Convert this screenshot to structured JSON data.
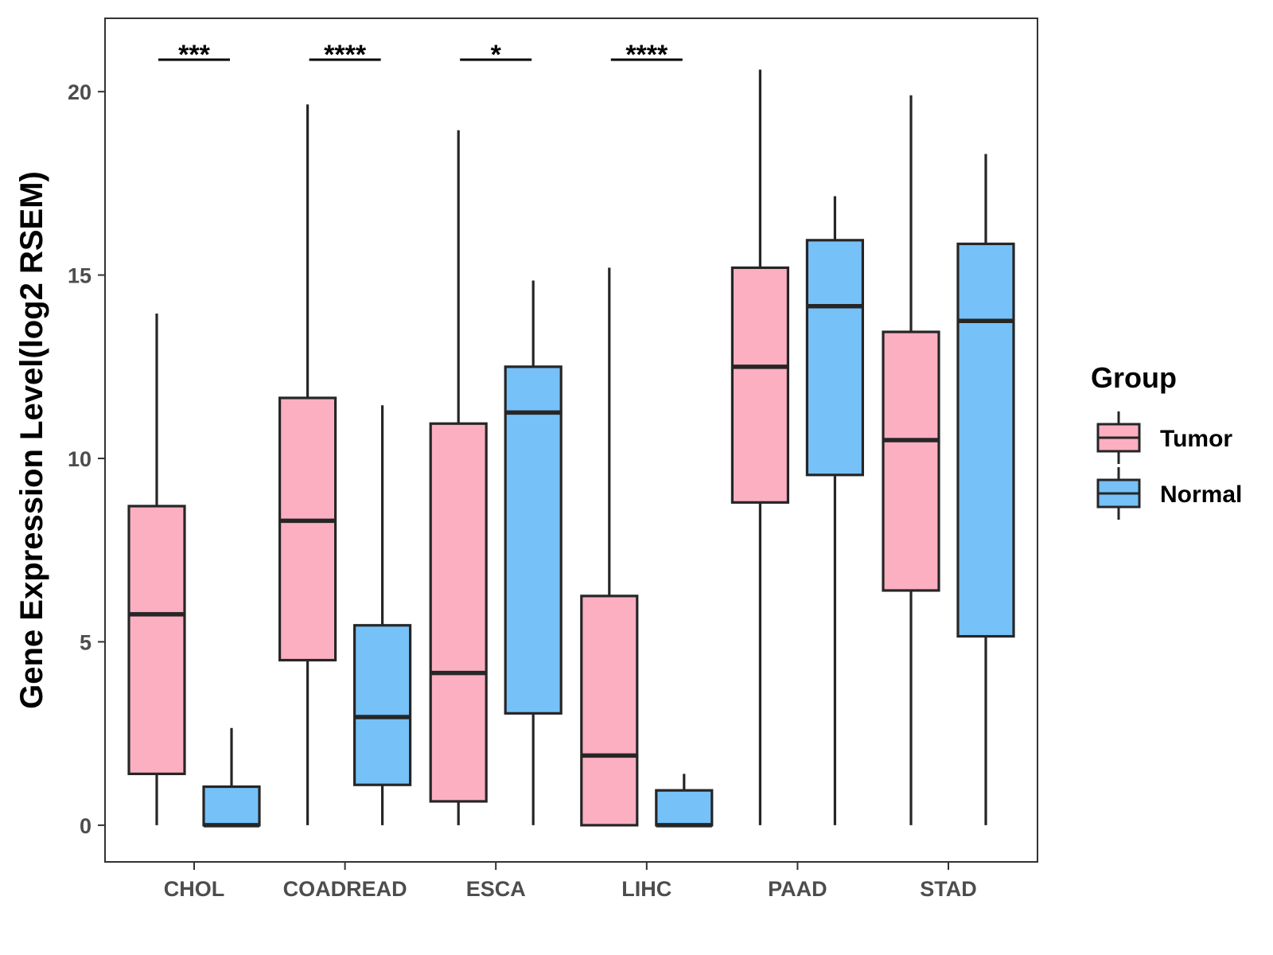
{
  "chart_data": {
    "type": "box",
    "title": "",
    "xlabel": "",
    "ylabel": "Gene Expression Level(log2 RSEM)",
    "ylim": [
      -1,
      22
    ],
    "yticks": [
      0,
      5,
      10,
      15,
      20
    ],
    "categories": [
      "CHOL",
      "COADREAD",
      "ESCA",
      "LIHC",
      "PAAD",
      "STAD"
    ],
    "legend": {
      "title": "Group",
      "position": "right"
    },
    "series": [
      {
        "name": "Tumor",
        "color": "#fbafc1",
        "boxes": [
          {
            "category": "CHOL",
            "min": 0,
            "q1": 1.4,
            "median": 5.75,
            "q3": 8.7,
            "max": 13.95
          },
          {
            "category": "COADREAD",
            "min": 0,
            "q1": 4.5,
            "median": 8.3,
            "q3": 11.65,
            "max": 19.65
          },
          {
            "category": "ESCA",
            "min": 0,
            "q1": 0.65,
            "median": 4.15,
            "q3": 10.95,
            "max": 18.95
          },
          {
            "category": "LIHC",
            "min": 0,
            "q1": 0,
            "median": 1.9,
            "q3": 6.25,
            "max": 15.2
          },
          {
            "category": "PAAD",
            "min": 0,
            "q1": 8.8,
            "median": 12.5,
            "q3": 15.2,
            "max": 20.6
          },
          {
            "category": "STAD",
            "min": 0,
            "q1": 6.4,
            "median": 10.5,
            "q3": 13.45,
            "max": 19.9
          }
        ]
      },
      {
        "name": "Normal",
        "color": "#76c1f8",
        "boxes": [
          {
            "category": "CHOL",
            "min": 0,
            "q1": 0,
            "median": 0,
            "q3": 1.05,
            "max": 2.65
          },
          {
            "category": "COADREAD",
            "min": 0,
            "q1": 1.1,
            "median": 2.95,
            "q3": 5.45,
            "max": 11.45
          },
          {
            "category": "ESCA",
            "min": 0,
            "q1": 3.05,
            "median": 11.25,
            "q3": 12.5,
            "max": 14.85
          },
          {
            "category": "LIHC",
            "min": 0,
            "q1": 0,
            "median": 0,
            "q3": 0.95,
            "max": 1.4
          },
          {
            "category": "PAAD",
            "min": 0,
            "q1": 9.55,
            "median": 14.15,
            "q3": 15.95,
            "max": 17.15
          },
          {
            "category": "STAD",
            "min": 0,
            "q1": 5.15,
            "median": 13.75,
            "q3": 15.85,
            "max": 18.3
          }
        ]
      }
    ],
    "significance": [
      {
        "category": "CHOL",
        "label": "***"
      },
      {
        "category": "COADREAD",
        "label": "****"
      },
      {
        "category": "ESCA",
        "label": "*"
      },
      {
        "category": "LIHC",
        "label": "****"
      }
    ]
  }
}
